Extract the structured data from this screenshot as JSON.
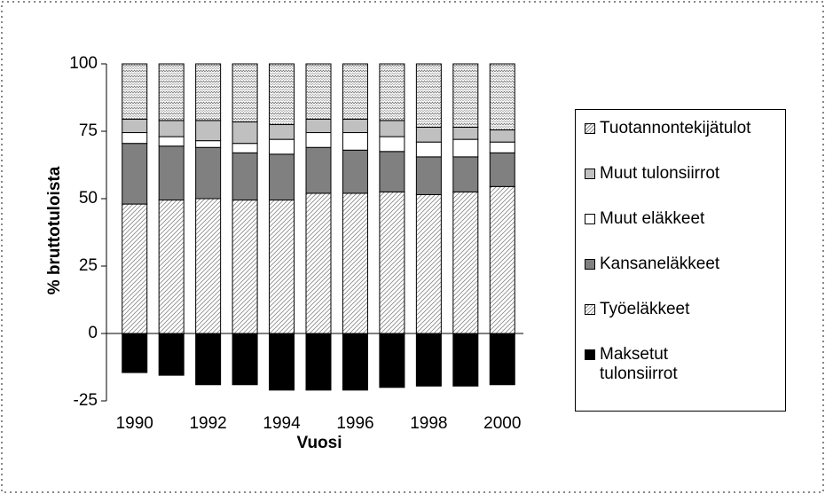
{
  "chart_data": {
    "type": "stacked_bar",
    "xlabel": "Vuosi",
    "ylabel": "% bruttotuloista",
    "categories": [
      "1990",
      null,
      "1992",
      null,
      "1994",
      null,
      "1996",
      null,
      "1998",
      null,
      "2000"
    ],
    "ylim": [
      -25,
      100
    ],
    "yticks": [
      -25,
      0,
      25,
      50,
      75,
      100
    ],
    "series": [
      {
        "name": "Tuotannontekijätulot",
        "color": "#d8d8d8",
        "pattern": "zigzag",
        "values": [
          20.5,
          21,
          21,
          21.5,
          22.5,
          20.5,
          20.5,
          21,
          23.5,
          23.5,
          24.5
        ]
      },
      {
        "name": "Muut tulonsiirrot",
        "color": "#c0c0c0",
        "values": [
          5,
          6,
          7.5,
          8,
          5.5,
          5,
          5,
          6,
          5.5,
          4.5,
          4.5
        ]
      },
      {
        "name": "Muut eläkkeet",
        "color": "#ffffff",
        "values": [
          4,
          3.5,
          2.5,
          3.5,
          5.5,
          5.5,
          6.5,
          5.5,
          5.5,
          6.5,
          4
        ]
      },
      {
        "name": "Kansaneläkkeet",
        "color": "#808080",
        "values": [
          22.5,
          20,
          19,
          17.5,
          17,
          17,
          16,
          15,
          14,
          13,
          12.5
        ]
      },
      {
        "name": "Työeläkkeet",
        "color": "#e8e8e8",
        "pattern": "hatch",
        "values": [
          48,
          49.5,
          50,
          49.5,
          49.5,
          52,
          52,
          52.5,
          51.5,
          52.5,
          54.5
        ]
      },
      {
        "name": "Maksetut tulonsiirrot",
        "color": "#000000",
        "values": [
          -14.5,
          -15.5,
          -19,
          -19,
          -21,
          -21,
          -21,
          -20,
          -19.5,
          -19.5,
          -19
        ]
      }
    ]
  }
}
